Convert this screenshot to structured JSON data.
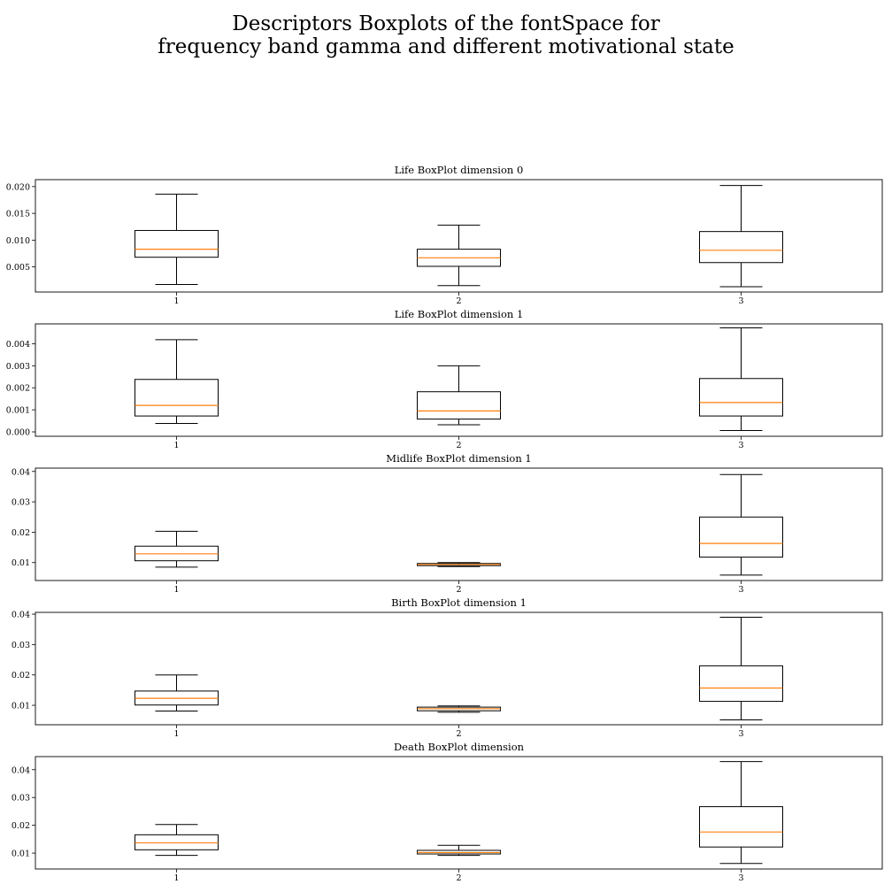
{
  "figure": {
    "title_line1": "Descriptors Boxplots of the fontSpace for",
    "title_line2": "frequency band gamma and different motivational state"
  },
  "colors": {
    "box": "#000000",
    "median": "#ff7f0e",
    "axes": "#000000",
    "background": "#ffffff"
  },
  "chart_data": [
    {
      "type": "boxplot",
      "title": "Life BoxPlot dimension 0",
      "categories": [
        "1",
        "2",
        "3"
      ],
      "ylim": [
        0.0003,
        0.0213
      ],
      "yticks": [
        0.005,
        0.01,
        0.015,
        0.02
      ],
      "ytick_labels": [
        "0.005",
        "0.010",
        "0.015",
        "0.020"
      ],
      "boxes": [
        {
          "whislo": 0.0017,
          "q1": 0.0068,
          "med": 0.0083,
          "q3": 0.0118,
          "whishi": 0.0186
        },
        {
          "whislo": 0.0015,
          "q1": 0.0051,
          "med": 0.0067,
          "q3": 0.0083,
          "whishi": 0.0128
        },
        {
          "whislo": 0.0013,
          "q1": 0.0058,
          "med": 0.0081,
          "q3": 0.0116,
          "whishi": 0.0202
        }
      ]
    },
    {
      "type": "boxplot",
      "title": "Life BoxPlot dimension 1",
      "categories": [
        "1",
        "2",
        "3"
      ],
      "ylim": [
        -0.0002,
        0.0049
      ],
      "yticks": [
        0.0,
        0.001,
        0.002,
        0.003,
        0.004
      ],
      "ytick_labels": [
        "0.000",
        "0.001",
        "0.002",
        "0.003",
        "0.004"
      ],
      "boxes": [
        {
          "whislo": 0.00038,
          "q1": 0.00072,
          "med": 0.0012,
          "q3": 0.00238,
          "whishi": 0.00418
        },
        {
          "whislo": 0.00032,
          "q1": 0.00058,
          "med": 0.00095,
          "q3": 0.00182,
          "whishi": 0.003
        },
        {
          "whislo": 6e-05,
          "q1": 0.00072,
          "med": 0.00133,
          "q3": 0.00242,
          "whishi": 0.00472
        }
      ]
    },
    {
      "type": "boxplot",
      "title": "Midlife BoxPlot dimension 1",
      "categories": [
        "1",
        "2",
        "3"
      ],
      "ylim": [
        0.0041,
        0.0411
      ],
      "yticks": [
        0.01,
        0.02,
        0.03,
        0.04
      ],
      "ytick_labels": [
        "0.01",
        "0.02",
        "0.03",
        "0.04"
      ],
      "boxes": [
        {
          "whislo": 0.0085,
          "q1": 0.0106,
          "med": 0.0129,
          "q3": 0.0154,
          "whishi": 0.0203
        },
        {
          "whislo": 0.0087,
          "q1": 0.009,
          "med": 0.0094,
          "q3": 0.0097,
          "whishi": 0.01
        },
        {
          "whislo": 0.0059,
          "q1": 0.0118,
          "med": 0.0163,
          "q3": 0.025,
          "whishi": 0.039
        }
      ]
    },
    {
      "type": "boxplot",
      "title": "Birth BoxPlot dimension 1",
      "categories": [
        "1",
        "2",
        "3"
      ],
      "ylim": [
        0.0036,
        0.0406
      ],
      "yticks": [
        0.01,
        0.02,
        0.03,
        0.04
      ],
      "ytick_labels": [
        "0.01",
        "0.02",
        "0.03",
        "0.04"
      ],
      "boxes": [
        {
          "whislo": 0.0081,
          "q1": 0.0101,
          "med": 0.0123,
          "q3": 0.0147,
          "whishi": 0.02
        },
        {
          "whislo": 0.0077,
          "q1": 0.0082,
          "med": 0.0089,
          "q3": 0.0094,
          "whishi": 0.0098
        },
        {
          "whislo": 0.0052,
          "q1": 0.0113,
          "med": 0.0157,
          "q3": 0.023,
          "whishi": 0.039
        }
      ]
    },
    {
      "type": "boxplot",
      "title": "Death BoxPlot dimension",
      "categories": [
        "1",
        "2",
        "3"
      ],
      "ylim": [
        0.0043,
        0.0447
      ],
      "yticks": [
        0.01,
        0.02,
        0.03,
        0.04
      ],
      "ytick_labels": [
        "0.01",
        "0.02",
        "0.03",
        "0.04"
      ],
      "boxes": [
        {
          "whislo": 0.0092,
          "q1": 0.0112,
          "med": 0.0137,
          "q3": 0.0166,
          "whishi": 0.0203
        },
        {
          "whislo": 0.0092,
          "q1": 0.0097,
          "med": 0.0102,
          "q3": 0.011,
          "whishi": 0.0128
        },
        {
          "whislo": 0.0063,
          "q1": 0.0122,
          "med": 0.0176,
          "q3": 0.0267,
          "whishi": 0.0429
        }
      ]
    }
  ]
}
